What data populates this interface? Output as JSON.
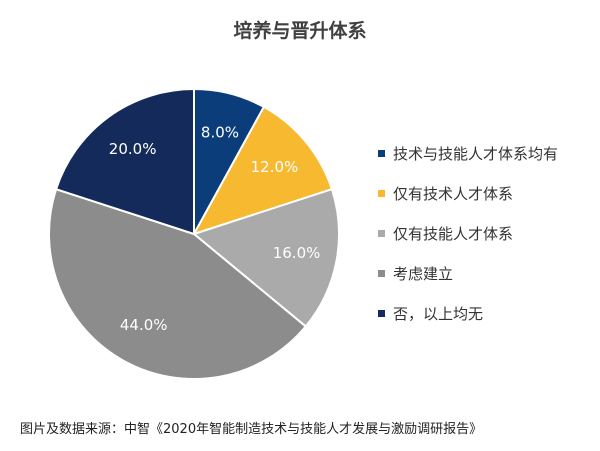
{
  "chart_data": {
    "type": "pie",
    "title": "培养与晋升体系",
    "start_angle_deg": 0,
    "direction": "clockwise",
    "legend_position": "right",
    "slices": [
      {
        "label": "技术与技能人才体系均有",
        "value": 8.0,
        "display": "8.0%",
        "color": "#0b3d7a",
        "label_color": "#ffffff"
      },
      {
        "label": "仅有技术人才体系",
        "value": 12.0,
        "display": "12.0%",
        "color": "#f6b930",
        "label_color": "#ffffff"
      },
      {
        "label": "仅有技能人才体系",
        "value": 16.0,
        "display": "16.0%",
        "color": "#aaaaaa",
        "label_color": "#ffffff"
      },
      {
        "label": "考虑建立",
        "value": 44.0,
        "display": "44.0%",
        "color": "#8c8c8c",
        "label_color": "#ffffff"
      },
      {
        "label": "否，以上均无",
        "value": 20.0,
        "display": "20.0%",
        "color": "#142a5a",
        "label_color": "#ffffff"
      }
    ]
  },
  "source_text": "图片及数据来源：中智《2020年智能制造技术与技能人才发展与激励调研报告》"
}
